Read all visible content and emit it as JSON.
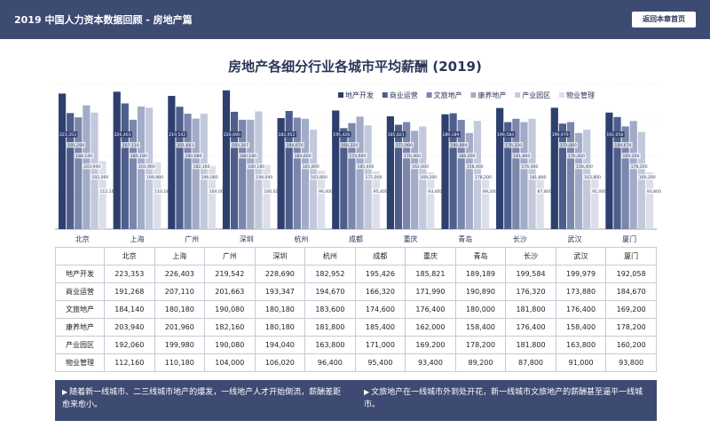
{
  "header": {
    "title": "2019 中国人力资本数据回顾 - 房地产篇",
    "back_label": "返回本章首页"
  },
  "chart_data": {
    "type": "bar",
    "title": "房地产各细分行业各城市平均薪酬 (2019)",
    "categories": [
      "北京",
      "上海",
      "广州",
      "深圳",
      "杭州",
      "成都",
      "重庆",
      "青岛",
      "长沙",
      "武汉",
      "厦门"
    ],
    "series": [
      {
        "name": "地产开发",
        "color": "#2e3f6e",
        "values": [
          223353,
          226403,
          219542,
          228690,
          182952,
          195426,
          185821,
          189189,
          199584,
          199979,
          192058
        ]
      },
      {
        "name": "商业运营",
        "color": "#4d5e8c",
        "values": [
          191268,
          207110,
          201663,
          193347,
          194670,
          166320,
          171990,
          190890,
          176320,
          173880,
          184670
        ]
      },
      {
        "name": "文旅地产",
        "color": "#7a86ab",
        "values": [
          184140,
          180180,
          190080,
          180180,
          183600,
          174600,
          176400,
          180000,
          181800,
          176400,
          169200
        ]
      },
      {
        "name": "康养地产",
        "color": "#a2acc8",
        "values": [
          203940,
          201960,
          182160,
          180180,
          181800,
          185400,
          162000,
          158400,
          176400,
          158400,
          178200
        ]
      },
      {
        "name": "产业园区",
        "color": "#c3c9dc",
        "values": [
          192060,
          199980,
          190080,
          194040,
          163800,
          171000,
          169200,
          178200,
          181800,
          163800,
          160200
        ]
      },
      {
        "name": "物业管理",
        "color": "#dcdfea",
        "values": [
          112160,
          110180,
          104000,
          106020,
          96400,
          95400,
          93400,
          89200,
          87800,
          91000,
          93800
        ]
      }
    ],
    "ylim": [
      0,
      240000
    ],
    "legend_position": "top-right",
    "bar_labels": [
      [
        "223,353",
        "191,268",
        "184,140",
        "203,940",
        "192,060",
        "112,160"
      ],
      [
        "226,403",
        "207,110",
        "180,180",
        "201,960",
        "199,980",
        "110,180"
      ],
      [
        "219,542",
        "201,663",
        "190,080",
        "182,160",
        "190,080",
        "104,000"
      ],
      [
        "228,690",
        "193,347",
        "180,180",
        "180,180",
        "194,040",
        "106,020"
      ],
      [
        "182,952",
        "194,670",
        "183,600",
        "181,800",
        "163,800",
        "96,400"
      ],
      [
        "195,426",
        "166,320",
        "174,600",
        "185,400",
        "171,000",
        "95,400"
      ],
      [
        "185,821",
        "171,990",
        "176,400",
        "162,000",
        "169,200",
        "93,400"
      ],
      [
        "189,189",
        "190,890",
        "180,000",
        "158,400",
        "178,200",
        "89,200"
      ],
      [
        "199,584",
        "176,320",
        "181,800",
        "176,400",
        "181,800",
        "87,800"
      ],
      [
        "199,979",
        "173,880",
        "176,400",
        "158,400",
        "163,800",
        "91,000"
      ],
      [
        "192,058",
        "184,670",
        "169,200",
        "178,200",
        "160,200",
        "93,800"
      ]
    ]
  },
  "table": {
    "corner": "",
    "rows": [
      {
        "label": "地产开发",
        "values": [
          "223,353",
          "226,403",
          "219,542",
          "228,690",
          "182,952",
          "195,426",
          "185,821",
          "189,189",
          "199,584",
          "199,979",
          "192,058"
        ]
      },
      {
        "label": "商业运营",
        "values": [
          "191,268",
          "207,110",
          "201,663",
          "193,347",
          "194,670",
          "166,320",
          "171,990",
          "190,890",
          "176,320",
          "173,880",
          "184,670"
        ]
      },
      {
        "label": "文旅地产",
        "values": [
          "184,140",
          "180,180",
          "190,080",
          "180,180",
          "183,600",
          "174,600",
          "176,400",
          "180,000",
          "181,800",
          "176,400",
          "169,200"
        ]
      },
      {
        "label": "康养地产",
        "values": [
          "203,940",
          "201,960",
          "182,160",
          "180,180",
          "181,800",
          "185,400",
          "162,000",
          "158,400",
          "176,400",
          "158,400",
          "178,200"
        ]
      },
      {
        "label": "产业园区",
        "values": [
          "192,060",
          "199,980",
          "190,080",
          "194,040",
          "163,800",
          "171,000",
          "169,200",
          "178,200",
          "181,800",
          "163,800",
          "160,200"
        ]
      },
      {
        "label": "物业管理",
        "values": [
          "112,160",
          "110,180",
          "104,000",
          "106,020",
          "96,400",
          "95,400",
          "93,400",
          "89,200",
          "87,800",
          "91,000",
          "93,800"
        ]
      }
    ]
  },
  "notes": {
    "arrow": "▶",
    "left": "随着新一线城市、二三线城市地产的爆发，一线地产人才开始倒流，薪酬差距愈来愈小。",
    "right": "文旅地产在一线城市外到处开花，新一线城市文旅地产的薪酬甚至逼平一线城市。"
  }
}
